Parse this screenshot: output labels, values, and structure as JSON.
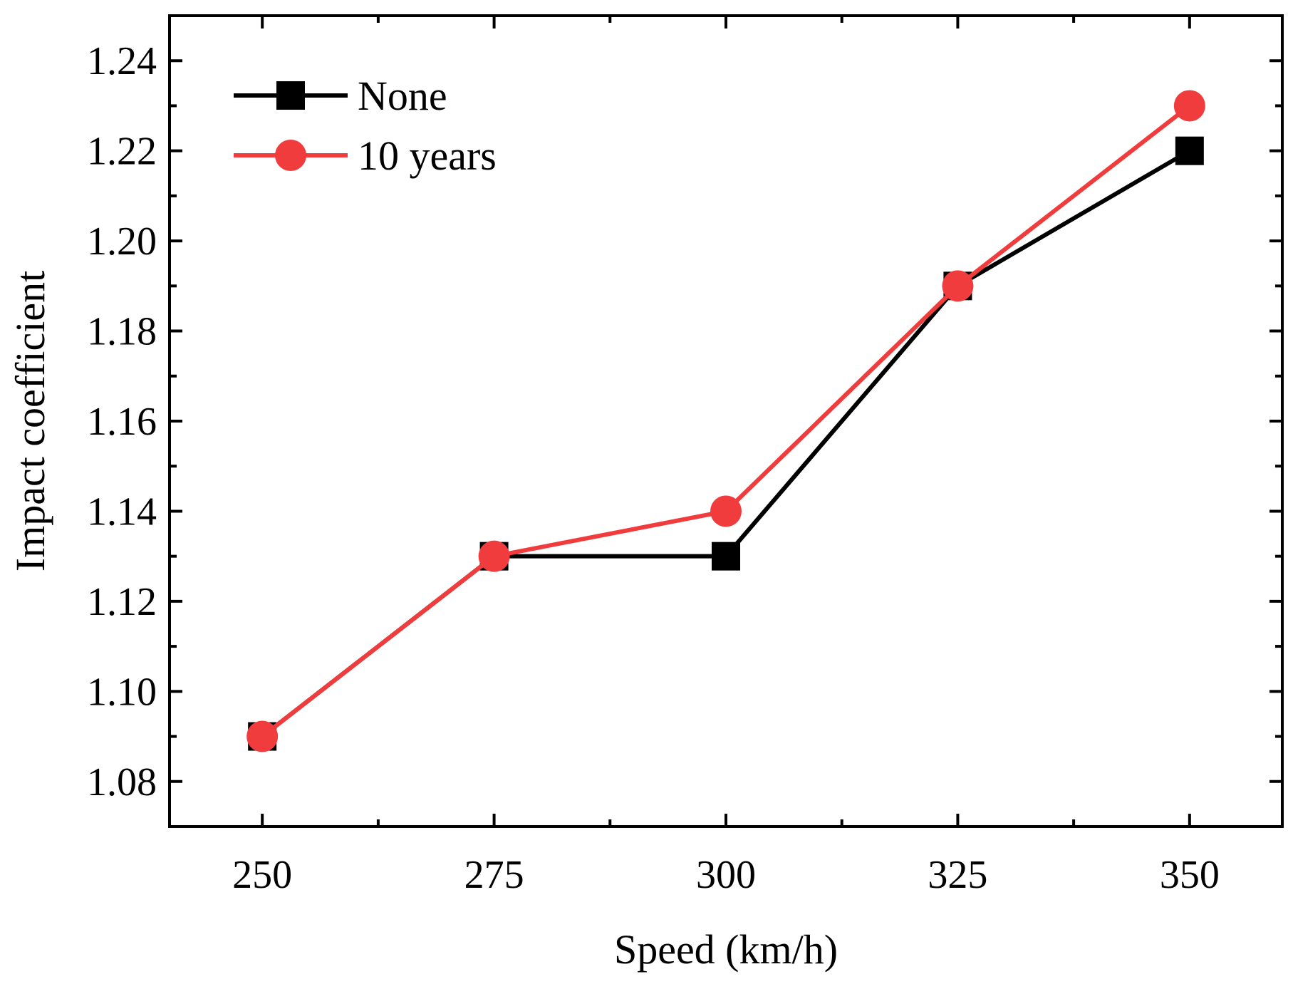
{
  "chart_data": {
    "type": "line",
    "title": "",
    "xlabel": "Speed (km/h)",
    "ylabel": "Impact coefficient",
    "x": [
      250,
      275,
      300,
      325,
      350
    ],
    "x_tick_labels": [
      "250",
      "275",
      "300",
      "325",
      "350"
    ],
    "xlim": [
      240,
      360
    ],
    "x_minor_ticks": [
      262.5,
      287.5,
      312.5,
      337.5
    ],
    "y_tick_values": [
      1.08,
      1.1,
      1.12,
      1.14,
      1.16,
      1.18,
      1.2,
      1.22,
      1.24
    ],
    "y_tick_labels": [
      "1.08",
      "1.10",
      "1.12",
      "1.14",
      "1.16",
      "1.18",
      "1.20",
      "1.22",
      "1.24"
    ],
    "ylim": [
      1.07,
      1.25
    ],
    "grid": false,
    "legend_position": "top-left",
    "series": [
      {
        "name": "None",
        "values": [
          1.09,
          1.13,
          1.13,
          1.19,
          1.22
        ],
        "color": "#000000",
        "marker": "square"
      },
      {
        "name": "10 years",
        "values": [
          1.09,
          1.13,
          1.14,
          1.19,
          1.23
        ],
        "color": "#f03c3c",
        "marker": "circle"
      }
    ]
  }
}
